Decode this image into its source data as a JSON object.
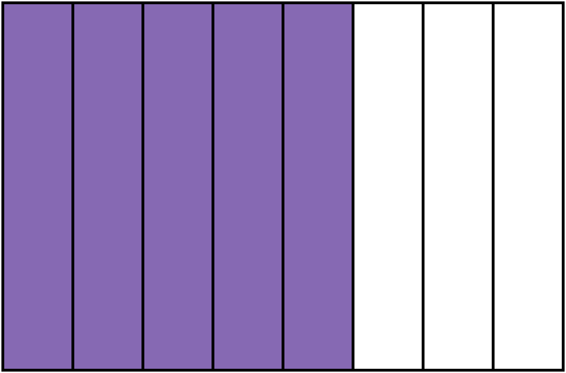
{
  "fraction_bar": {
    "total_parts": 8,
    "shaded_parts": 5,
    "shaded_color": "#8669B3",
    "unshaded_color": "#FFFFFF",
    "border_color": "#000000"
  }
}
